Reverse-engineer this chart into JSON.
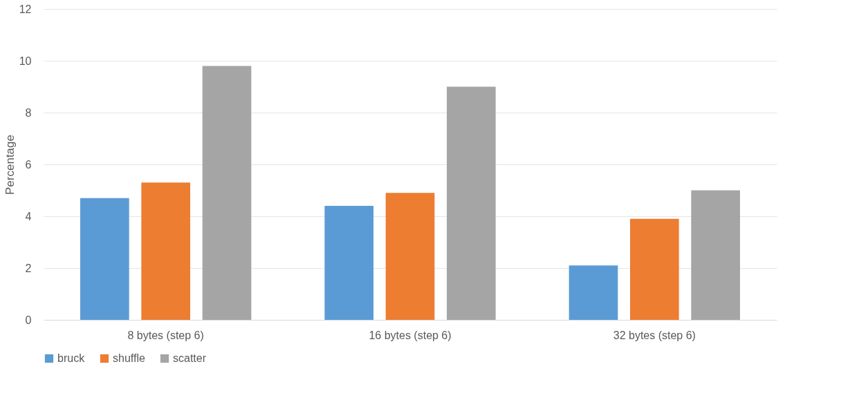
{
  "chart_data": {
    "type": "bar",
    "ylabel": "Percentage",
    "categories": [
      "8 bytes (step 6)",
      "16 bytes (step 6)",
      "32 bytes (step 6)"
    ],
    "series": [
      {
        "name": "bruck",
        "color": "#5b9bd5",
        "values": [
          4.7,
          4.4,
          2.1
        ]
      },
      {
        "name": "shuffle",
        "color": "#ed7d31",
        "values": [
          5.3,
          4.9,
          3.9
        ]
      },
      {
        "name": "scatter",
        "color": "#a5a5a5",
        "values": [
          9.8,
          9.0,
          5.0
        ]
      }
    ],
    "ylim": [
      0,
      12
    ],
    "yticks": [
      0,
      2,
      4,
      6,
      8,
      10,
      12
    ],
    "grid": "y",
    "legend": "bottom"
  }
}
